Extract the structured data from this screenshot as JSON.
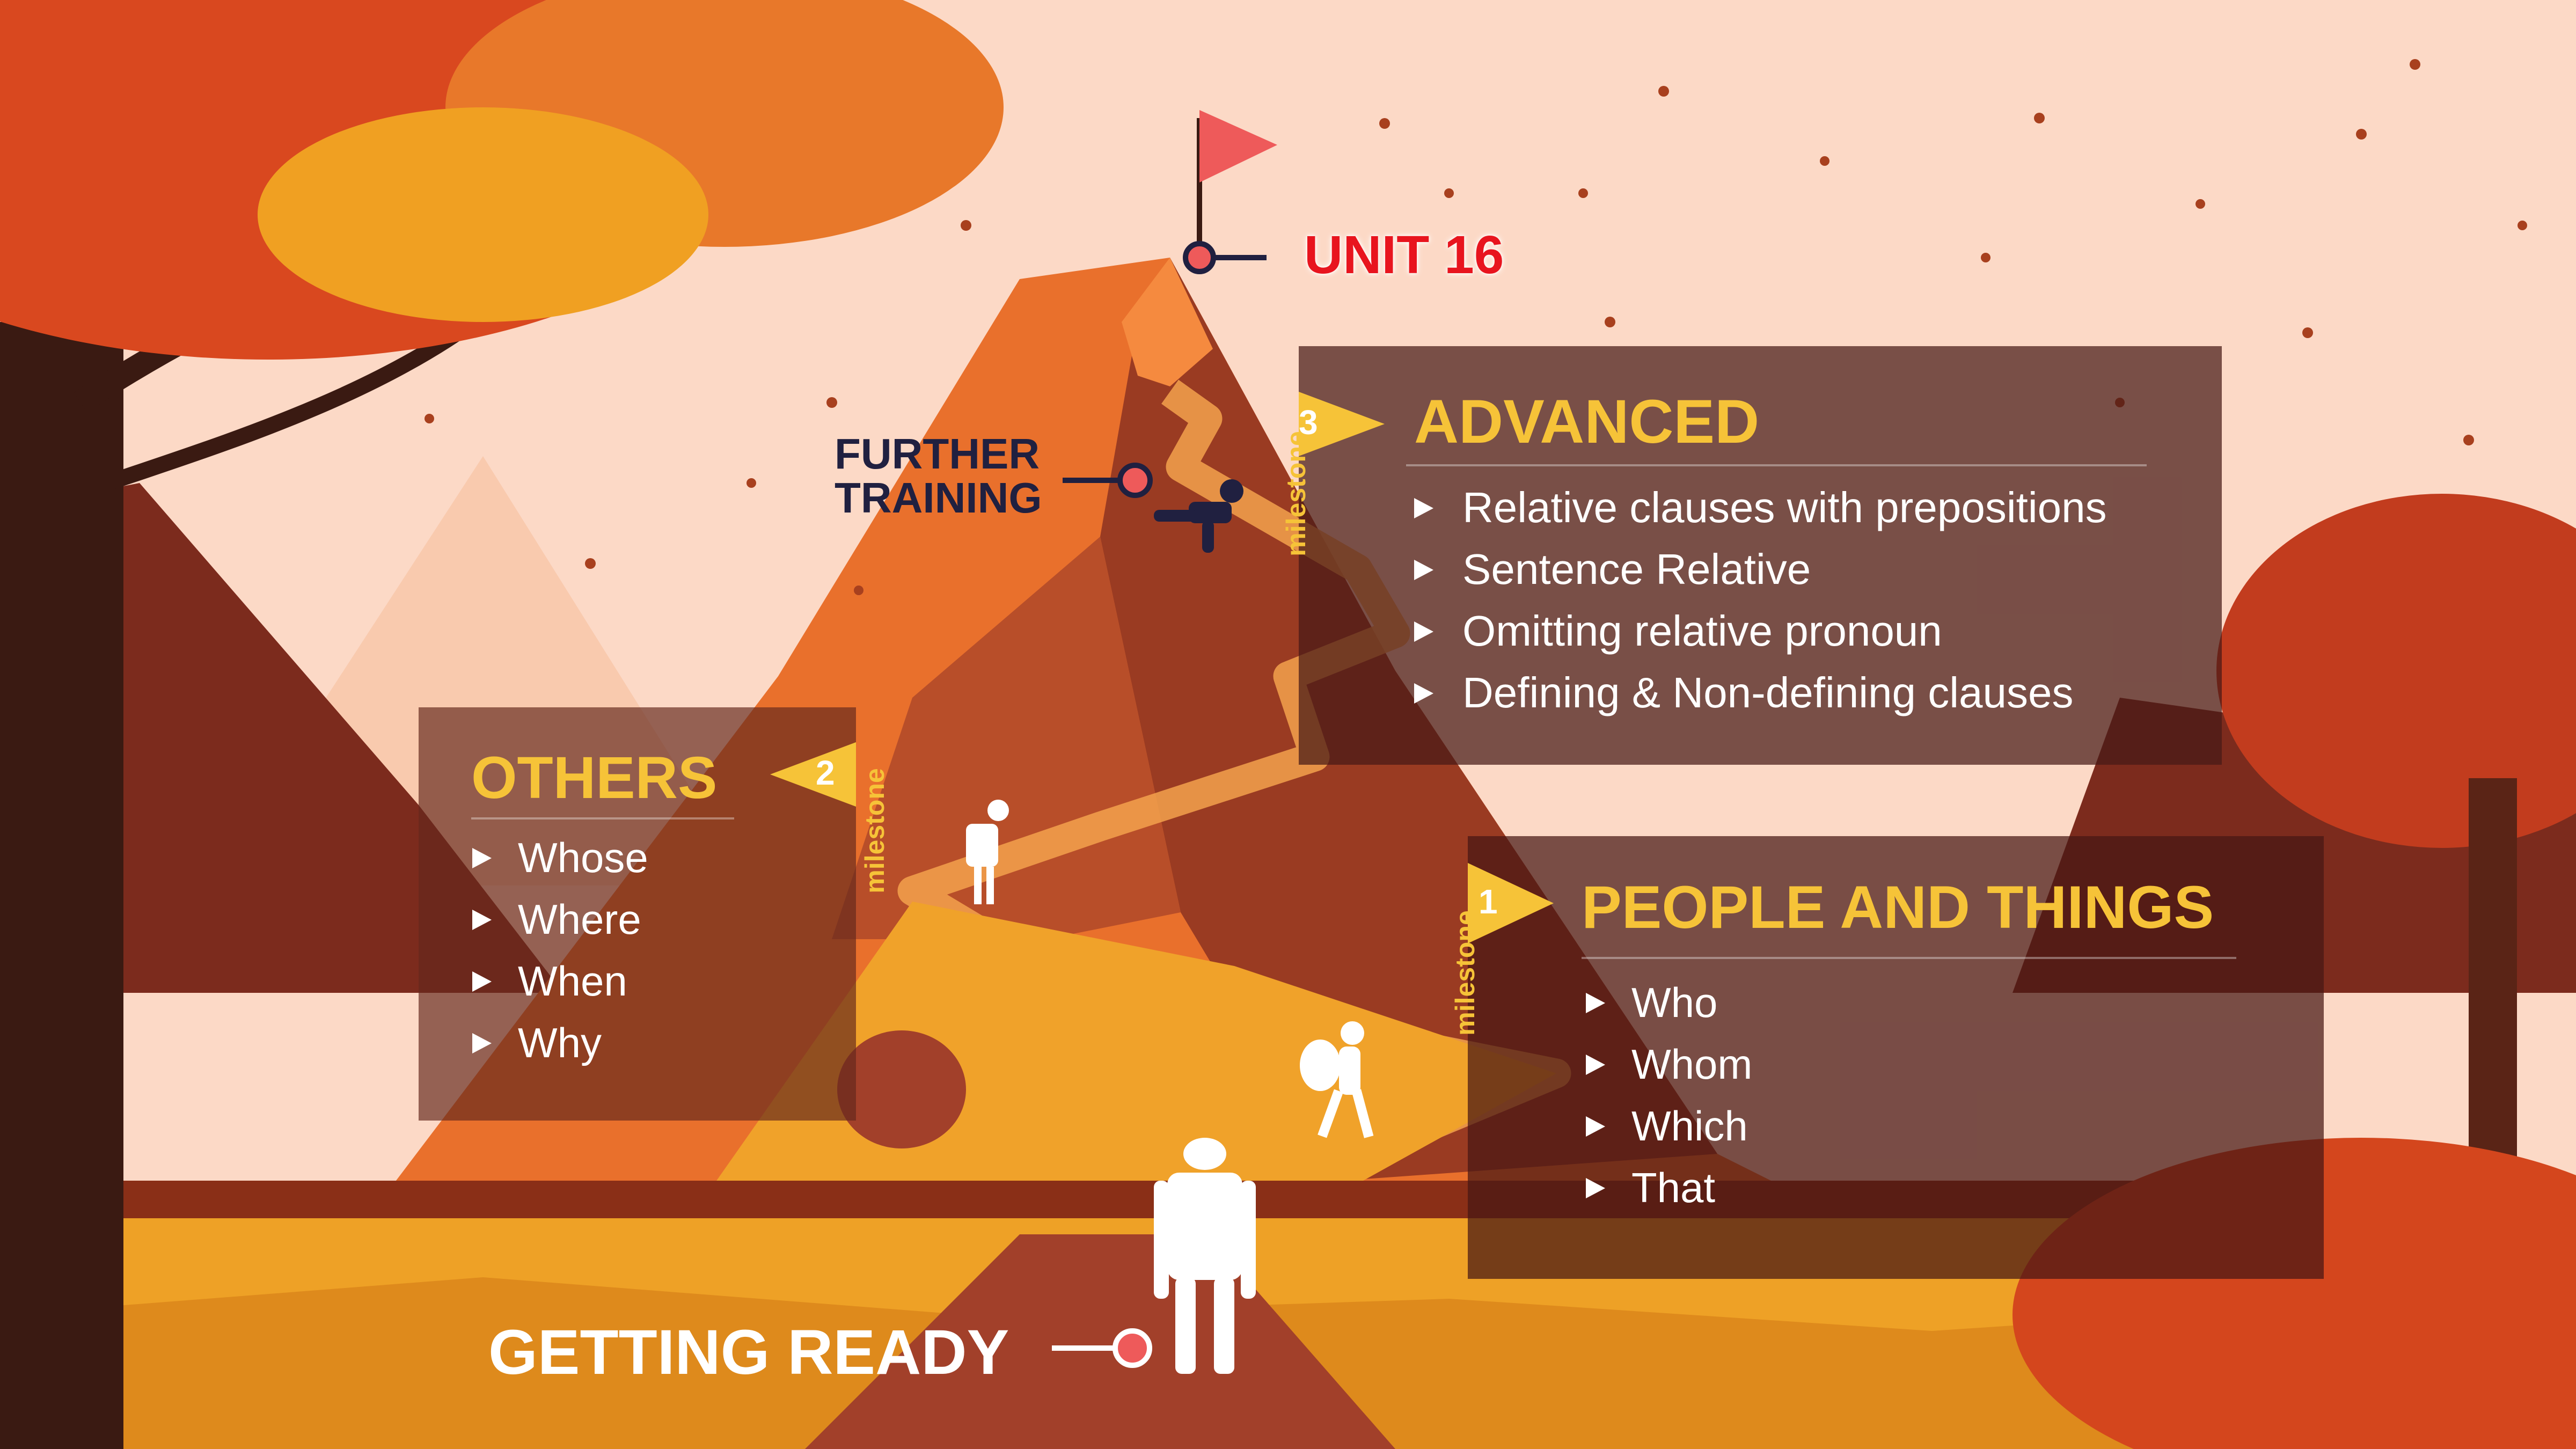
{
  "title": "UNIT 16",
  "stops": {
    "start": "GETTING READY",
    "training_line1": "FURTHER",
    "training_line2": "TRAINING"
  },
  "milestone_label": "milestone",
  "milestones": [
    {
      "number": "1",
      "title": "PEOPLE AND THINGS",
      "items": [
        "Who",
        "Whom",
        "Which",
        "That"
      ]
    },
    {
      "number": "2",
      "title": "OTHERS",
      "items": [
        "Whose",
        "Where",
        "When",
        "Why"
      ]
    },
    {
      "number": "3",
      "title": "ADVANCED",
      "items": [
        "Relative clauses with prepositions",
        "Sentence Relative",
        "Omitting relative pronoun",
        "Defining & Non-defining clauses"
      ]
    }
  ],
  "colors": {
    "sky": "#fcd9c6",
    "accent_yellow": "#f6c338",
    "title_red": "#e8141e",
    "navy": "#202040",
    "flag": "#ee5a5a",
    "mountain_orange": "#e9702c",
    "mountain_dark": "#8c3520"
  },
  "icons": [
    "summit-flag-icon",
    "hiker-icon",
    "leaves-icon",
    "triangle-bullet-icon"
  ]
}
